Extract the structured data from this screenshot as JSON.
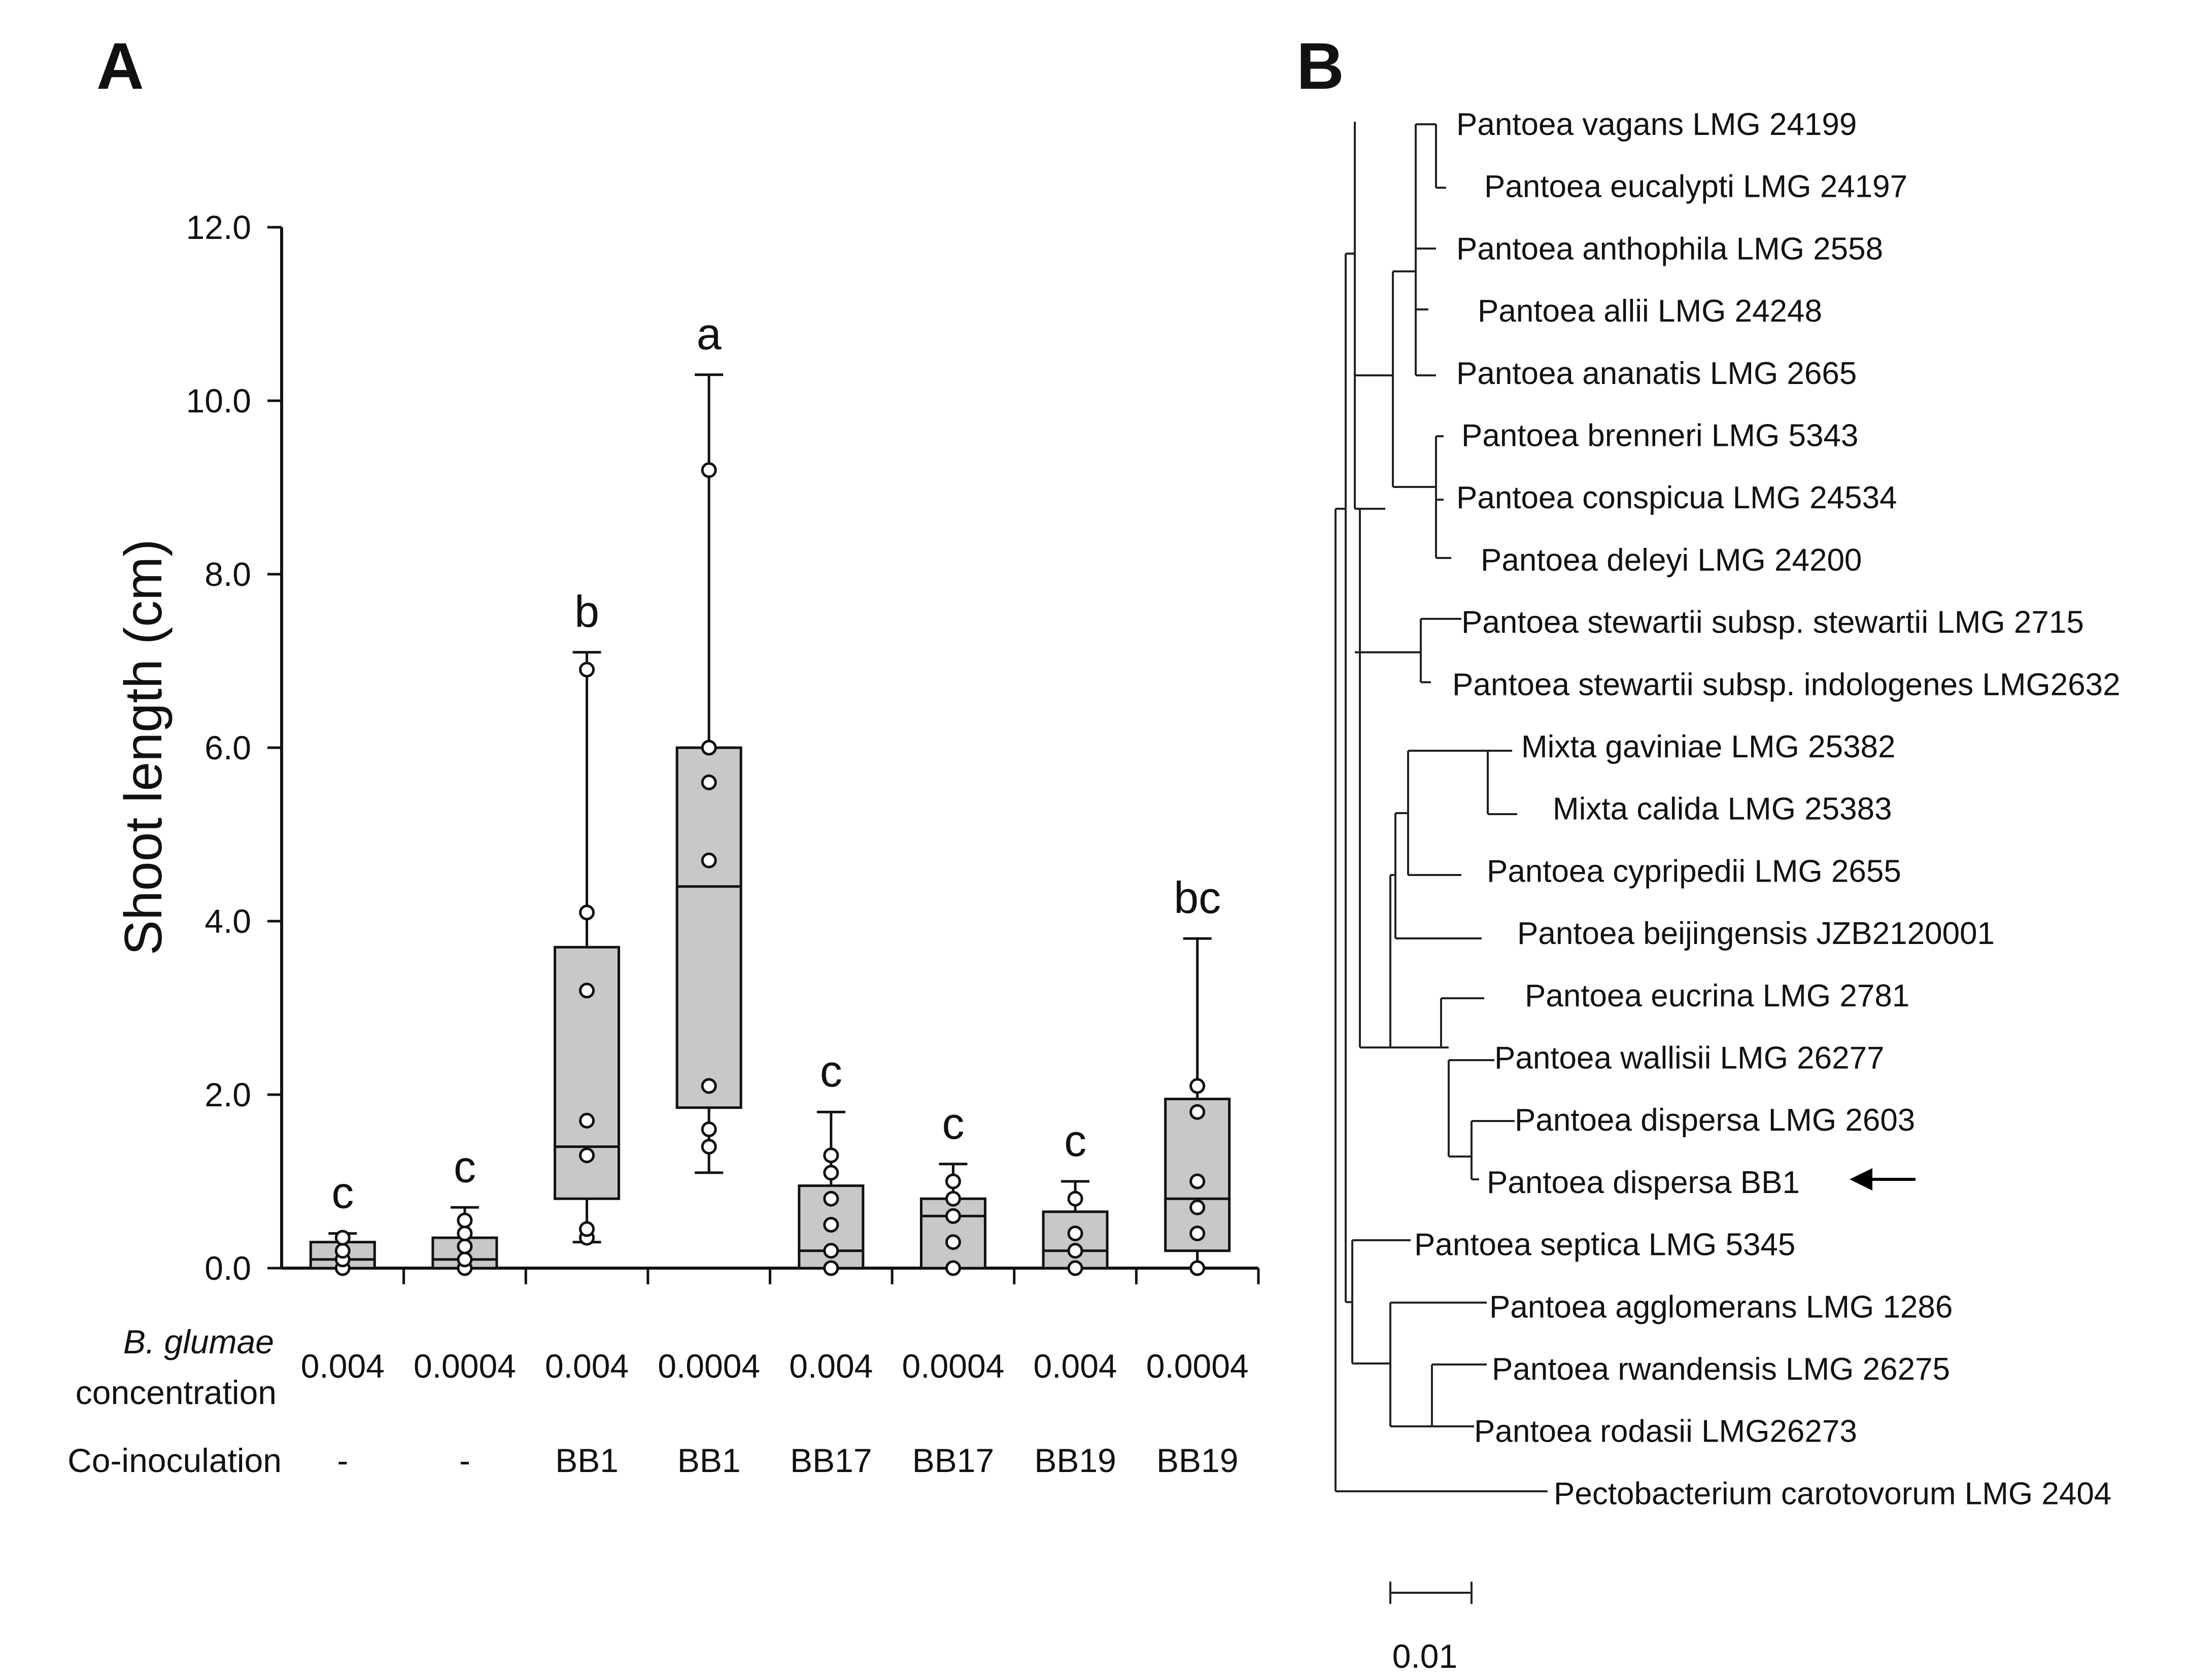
{
  "panels": {
    "left": "A",
    "right": "B"
  },
  "chart_data": [
    {
      "type": "box",
      "title": "",
      "ylabel": "Shoot length (cm)",
      "ylim": [
        0,
        12
      ],
      "yticks": [
        "0.0",
        "2.0",
        "4.0",
        "6.0",
        "8.0",
        "10.0",
        "12.0"
      ],
      "row_labels": {
        "concentration_italic": "B. glumae",
        "concentration_rest": "concentration",
        "coinoculation": "Co-inoculation"
      },
      "groups": [
        {
          "concentration": "0.004",
          "coinoculation": "-",
          "letter": "c",
          "min": 0,
          "q1": 0,
          "median": 0.1,
          "q3": 0.3,
          "max": 0.4,
          "points": [
            0,
            0.1,
            0.2,
            0.35
          ]
        },
        {
          "concentration": "0.0004",
          "coinoculation": "-",
          "letter": "c",
          "min": 0,
          "q1": 0,
          "median": 0.1,
          "q3": 0.35,
          "max": 0.7,
          "points": [
            0,
            0.1,
            0.25,
            0.4,
            0.55
          ]
        },
        {
          "concentration": "0.004",
          "coinoculation": "BB1",
          "letter": "b",
          "min": 0.3,
          "q1": 0.8,
          "median": 1.4,
          "q3": 3.7,
          "max": 7.1,
          "points": [
            0.35,
            0.45,
            1.3,
            1.7,
            3.2,
            4.1,
            6.9
          ]
        },
        {
          "concentration": "0.0004",
          "coinoculation": "BB1",
          "letter": "a",
          "min": 1.1,
          "q1": 1.85,
          "median": 4.4,
          "q3": 6.0,
          "max": 10.3,
          "points": [
            1.4,
            1.6,
            2.1,
            4.7,
            5.6,
            6.0,
            9.2
          ]
        },
        {
          "concentration": "0.004",
          "coinoculation": "BB17",
          "letter": "c",
          "min": 0,
          "q1": 0,
          "median": 0.2,
          "q3": 0.95,
          "max": 1.8,
          "points": [
            0,
            0.2,
            0.5,
            0.8,
            1.1,
            1.3
          ]
        },
        {
          "concentration": "0.0004",
          "coinoculation": "BB17",
          "letter": "c",
          "min": 0,
          "q1": 0,
          "median": 0.6,
          "q3": 0.8,
          "max": 1.2,
          "points": [
            0,
            0.3,
            0.6,
            0.8,
            1.0
          ]
        },
        {
          "concentration": "0.004",
          "coinoculation": "BB19",
          "letter": "c",
          "min": 0,
          "q1": 0,
          "median": 0.2,
          "q3": 0.65,
          "max": 1.0,
          "points": [
            0,
            0.2,
            0.4,
            0.8
          ]
        },
        {
          "concentration": "0.0004",
          "coinoculation": "BB19",
          "letter": "bc",
          "min": 0,
          "q1": 0.2,
          "median": 0.8,
          "q3": 1.95,
          "max": 3.8,
          "points": [
            0,
            0.4,
            0.7,
            1.0,
            1.8,
            2.1
          ]
        }
      ]
    },
    {
      "type": "tree",
      "title": "",
      "taxa": [
        "Pantoea vagans LMG 24199",
        "Pantoea eucalypti LMG 24197",
        "Pantoea anthophila LMG 2558",
        "Pantoea allii LMG 24248",
        "Pantoea ananatis LMG 2665",
        "Pantoea brenneri LMG 5343",
        "Pantoea conspicua LMG 24534",
        "Pantoea deleyi LMG 24200",
        "Pantoea stewartii subsp. stewartii LMG 2715",
        "Pantoea stewartii subsp. indologenes LMG2632",
        "Mixta gaviniae LMG 25382",
        "Mixta calida LMG 25383",
        "Pantoea cypripedii LMG 2655",
        "Pantoea beijingensis JZB2120001",
        "Pantoea eucrina LMG 2781",
        "Pantoea wallisii LMG 26277",
        "Pantoea dispersa LMG 2603",
        "Pantoea dispersa BB1",
        "Pantoea septica LMG 5345",
        "Pantoea agglomerans LMG 1286",
        "Pantoea rwandensis LMG 26275",
        "Pantoea rodasii LMG26273",
        "Pectobacterium carotovorum LMG 2404"
      ],
      "highlighted_taxon": "Pantoea dispersa BB1",
      "scale_label": "0.01"
    }
  ]
}
